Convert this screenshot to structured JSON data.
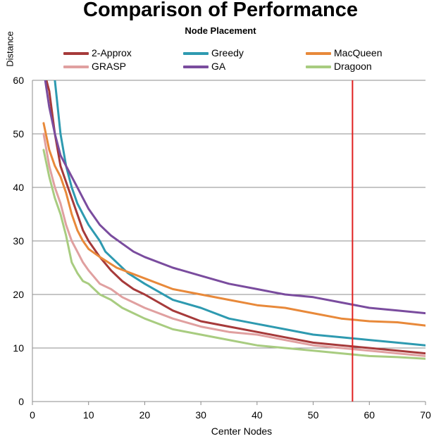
{
  "chart_data": {
    "type": "line",
    "title": "Comparison of Performance",
    "subtitle": "Node Placement",
    "xlabel": "Center Nodes",
    "ylabel": "Distance",
    "xlim": [
      0,
      70
    ],
    "ylim": [
      0,
      60
    ],
    "x_ticks": [
      0,
      10,
      20,
      30,
      40,
      50,
      60,
      70
    ],
    "y_ticks": [
      0,
      10,
      20,
      30,
      40,
      50,
      60
    ],
    "grid": "horizontal",
    "legend_position": "top",
    "vertical_marker": {
      "x": 57,
      "color": "#E02020"
    },
    "series": [
      {
        "name": "2-Approx",
        "color": "#A63A3A",
        "points": [
          [
            2,
            62
          ],
          [
            3,
            58
          ],
          [
            4,
            50
          ],
          [
            5,
            44
          ],
          [
            6,
            41
          ],
          [
            7,
            38
          ],
          [
            8,
            35
          ],
          [
            9,
            32
          ],
          [
            10,
            30
          ],
          [
            12,
            27
          ],
          [
            14,
            24.5
          ],
          [
            16,
            22.5
          ],
          [
            18,
            21
          ],
          [
            20,
            20
          ],
          [
            25,
            17
          ],
          [
            30,
            15
          ],
          [
            35,
            14
          ],
          [
            40,
            13
          ],
          [
            45,
            12
          ],
          [
            50,
            11
          ],
          [
            55,
            10.5
          ],
          [
            60,
            10
          ],
          [
            65,
            9.5
          ],
          [
            70,
            9
          ]
        ]
      },
      {
        "name": "Greedy",
        "color": "#2E9AB0",
        "points": [
          [
            2,
            62
          ],
          [
            3,
            61
          ],
          [
            4,
            60
          ],
          [
            5,
            50
          ],
          [
            6,
            44
          ],
          [
            7,
            40
          ],
          [
            8,
            37
          ],
          [
            9,
            35
          ],
          [
            10,
            33
          ],
          [
            12,
            30
          ],
          [
            13,
            28
          ],
          [
            15,
            26
          ],
          [
            17,
            24
          ],
          [
            20,
            22
          ],
          [
            25,
            19
          ],
          [
            30,
            17.5
          ],
          [
            35,
            15.5
          ],
          [
            40,
            14.5
          ],
          [
            45,
            13.5
          ],
          [
            50,
            12.5
          ],
          [
            55,
            12
          ],
          [
            60,
            11.5
          ],
          [
            65,
            11
          ],
          [
            70,
            10.5
          ]
        ]
      },
      {
        "name": "MacQueen",
        "color": "#E8893A",
        "points": [
          [
            2,
            52
          ],
          [
            3,
            47
          ],
          [
            4,
            44
          ],
          [
            5,
            42
          ],
          [
            6,
            39
          ],
          [
            7,
            35
          ],
          [
            8,
            32
          ],
          [
            9,
            30
          ],
          [
            10,
            28.5
          ],
          [
            12,
            27
          ],
          [
            15,
            25
          ],
          [
            20,
            23
          ],
          [
            25,
            21
          ],
          [
            30,
            20
          ],
          [
            35,
            19
          ],
          [
            40,
            18
          ],
          [
            45,
            17.5
          ],
          [
            50,
            16.5
          ],
          [
            55,
            15.5
          ],
          [
            60,
            15
          ],
          [
            65,
            14.8
          ],
          [
            70,
            14.2
          ]
        ]
      },
      {
        "name": "GRASP",
        "color": "#E0A0A0",
        "points": [
          [
            2,
            50
          ],
          [
            3,
            44
          ],
          [
            4,
            40
          ],
          [
            5,
            37
          ],
          [
            6,
            33
          ],
          [
            7,
            30
          ],
          [
            8,
            28
          ],
          [
            9,
            26
          ],
          [
            10,
            24.5
          ],
          [
            12,
            22
          ],
          [
            14,
            21
          ],
          [
            16,
            19.5
          ],
          [
            18,
            18.5
          ],
          [
            20,
            17.5
          ],
          [
            25,
            15.5
          ],
          [
            30,
            14
          ],
          [
            35,
            13
          ],
          [
            40,
            12.5
          ],
          [
            45,
            11.5
          ],
          [
            50,
            10.5
          ],
          [
            55,
            10
          ],
          [
            60,
            9.5
          ],
          [
            65,
            9
          ],
          [
            70,
            8.5
          ]
        ]
      },
      {
        "name": "GA",
        "color": "#7A4C9E",
        "points": [
          [
            2,
            62
          ],
          [
            3,
            55
          ],
          [
            4,
            50
          ],
          [
            5,
            46
          ],
          [
            6,
            44
          ],
          [
            7,
            42
          ],
          [
            8,
            40
          ],
          [
            9,
            38
          ],
          [
            10,
            36
          ],
          [
            12,
            33
          ],
          [
            14,
            31
          ],
          [
            16,
            29.5
          ],
          [
            18,
            28
          ],
          [
            20,
            27
          ],
          [
            25,
            25
          ],
          [
            30,
            23.5
          ],
          [
            35,
            22
          ],
          [
            40,
            21
          ],
          [
            45,
            20
          ],
          [
            50,
            19.5
          ],
          [
            55,
            18.5
          ],
          [
            60,
            17.5
          ],
          [
            65,
            17
          ],
          [
            70,
            16.5
          ]
        ]
      },
      {
        "name": "Dragoon",
        "color": "#A8CC80",
        "points": [
          [
            2,
            47
          ],
          [
            3,
            42
          ],
          [
            4,
            38
          ],
          [
            5,
            35
          ],
          [
            6,
            31
          ],
          [
            7,
            26
          ],
          [
            8,
            24
          ],
          [
            9,
            22.5
          ],
          [
            10,
            22
          ],
          [
            12,
            20
          ],
          [
            14,
            19
          ],
          [
            16,
            17.5
          ],
          [
            18,
            16.5
          ],
          [
            20,
            15.5
          ],
          [
            25,
            13.5
          ],
          [
            30,
            12.5
          ],
          [
            35,
            11.5
          ],
          [
            40,
            10.5
          ],
          [
            45,
            10
          ],
          [
            50,
            9.5
          ],
          [
            55,
            9
          ],
          [
            60,
            8.5
          ],
          [
            65,
            8.3
          ],
          [
            70,
            8
          ]
        ]
      }
    ]
  }
}
